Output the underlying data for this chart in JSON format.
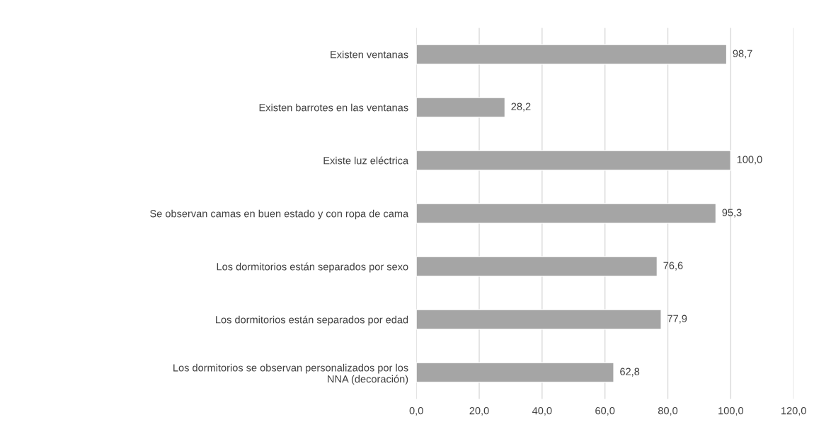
{
  "chart_data": {
    "type": "bar",
    "orientation": "horizontal",
    "categories": [
      "Existen ventanas",
      "Existen barrotes en las ventanas",
      "Existe luz eléctrica",
      "Se observan camas en buen estado y con ropa de cama",
      "Los dormitorios están separados por sexo",
      "Los dormitorios están separados por edad",
      "Los dormitorios se observan personalizados por los\nNNA (decoración)"
    ],
    "values": [
      98.7,
      28.2,
      100.0,
      95.3,
      76.6,
      77.9,
      62.8
    ],
    "value_labels": [
      "98,7",
      "28,2",
      "100,0",
      "95,3",
      "76,6",
      "77,9",
      "62,8"
    ],
    "color": "#a5a5a5",
    "xlim": [
      0,
      120
    ],
    "xticks": [
      {
        "value": 0,
        "label": "0,0"
      },
      {
        "value": 20,
        "label": "20,0"
      },
      {
        "value": 40,
        "label": "40,0"
      },
      {
        "value": 60,
        "label": "60,0"
      },
      {
        "value": 80,
        "label": "80,0"
      },
      {
        "value": 100,
        "label": "100,0"
      },
      {
        "value": 120,
        "label": "120,0"
      }
    ],
    "grid": "x",
    "legend": false
  }
}
